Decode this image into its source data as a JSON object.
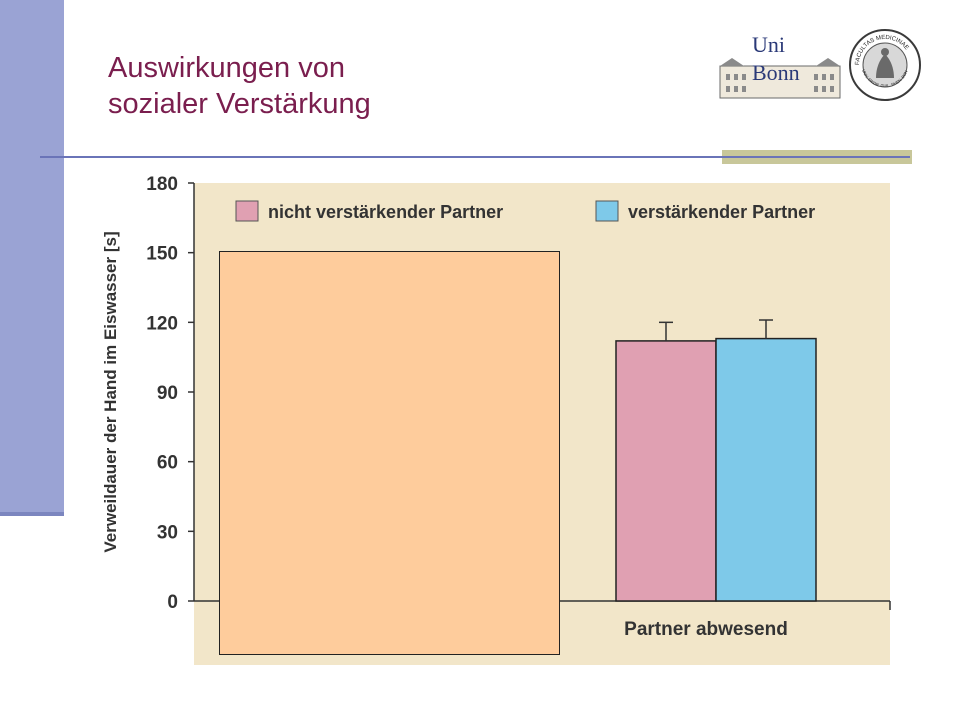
{
  "slide": {
    "title_line1": "Auswirkungen von",
    "title_line2": "sozialer Verstärkung"
  },
  "logos": {
    "university_lettering": [
      "Uni",
      "Bonn"
    ],
    "seal_lettering": "FACULTAS MEDICINAE",
    "seal_lettering_lower": "UNIV. FRIDR. GUIL. RHEN. BONN."
  },
  "colors": {
    "title": "#7a1e4e",
    "sidebar": "#9aa3d4",
    "plot_background": "#f2e6c9",
    "series_1": "#e0a0b2",
    "series_2": "#7ec9e9",
    "occluder": "#fecc9c"
  },
  "chart_data": {
    "type": "bar",
    "ylabel": "Verweildauer der Hand im Eiswasser [s]",
    "xlabel": "",
    "ylim": [
      0,
      180
    ],
    "yticks": [
      0,
      30,
      60,
      90,
      120,
      150,
      180
    ],
    "grid": false,
    "legend_position": "top",
    "categories": [
      "",
      "Partner abwesend"
    ],
    "series": [
      {
        "name": "nicht verstärkender Partner",
        "values": [
          null,
          112
        ],
        "error": [
          null,
          8
        ],
        "color": "#e0a0b2"
      },
      {
        "name": "verstärkender Partner",
        "values": [
          null,
          113
        ],
        "error": [
          null,
          8
        ],
        "color": "#7ec9e9"
      }
    ],
    "note_obscured": "first category covered by a blank box"
  }
}
